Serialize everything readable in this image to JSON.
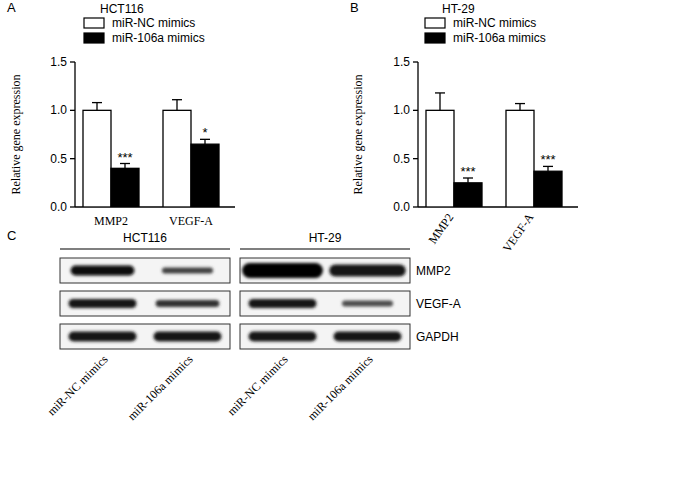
{
  "chart_data": [
    {
      "type": "bar",
      "panel": "A",
      "title": "HCT116",
      "y_label": "Relative gene expression",
      "categories": [
        "MMP2",
        "VEGF-A"
      ],
      "series": [
        {
          "name": "miR-NC mimics",
          "color": "#ffffff",
          "values": [
            1.0,
            1.0
          ],
          "errors": [
            0.08,
            0.11
          ]
        },
        {
          "name": "miR-106a mimics",
          "color": "#000000",
          "values": [
            0.4,
            0.65
          ],
          "errors": [
            0.05,
            0.05
          ]
        }
      ],
      "annotations": [
        "***",
        "*"
      ],
      "ylim": [
        0,
        1.5
      ],
      "yticks": [
        {
          "value": 0,
          "label": "0.0"
        },
        {
          "value": 0.5,
          "label": "0.5"
        },
        {
          "value": 1,
          "label": "1.0"
        },
        {
          "value": 1.5,
          "label": "1.5"
        }
      ],
      "legend": "upper left",
      "grid": false
    },
    {
      "type": "bar",
      "panel": "B",
      "title": "HT-29",
      "y_label": "Relative gene expression",
      "categories": [
        "MMP2",
        "VEGF-A"
      ],
      "series": [
        {
          "name": "miR-NC mimics",
          "color": "#ffffff",
          "values": [
            1.0,
            1.0
          ],
          "errors": [
            0.18,
            0.07
          ]
        },
        {
          "name": "miR-106a mimics",
          "color": "#000000",
          "values": [
            0.25,
            0.37
          ],
          "errors": [
            0.05,
            0.05
          ]
        }
      ],
      "annotations": [
        "***",
        "***"
      ],
      "ylim": [
        0,
        1.5
      ],
      "yticks": [
        {
          "value": 0,
          "label": "0.0"
        },
        {
          "value": 0.5,
          "label": "0.5"
        },
        {
          "value": 1,
          "label": "1.0"
        },
        {
          "value": 1.5,
          "label": "1.5"
        }
      ],
      "legend": "upper left",
      "grid": false
    }
  ],
  "blot": {
    "panel": "C",
    "groups": [
      "HCT116",
      "HT-29"
    ],
    "proteins": [
      "MMP2",
      "VEGF-A",
      "GAPDH"
    ],
    "lanes": [
      "miR-NC mimics",
      "miR-106a mimics",
      "miR-NC mimics",
      "miR-106a mimics"
    ]
  }
}
